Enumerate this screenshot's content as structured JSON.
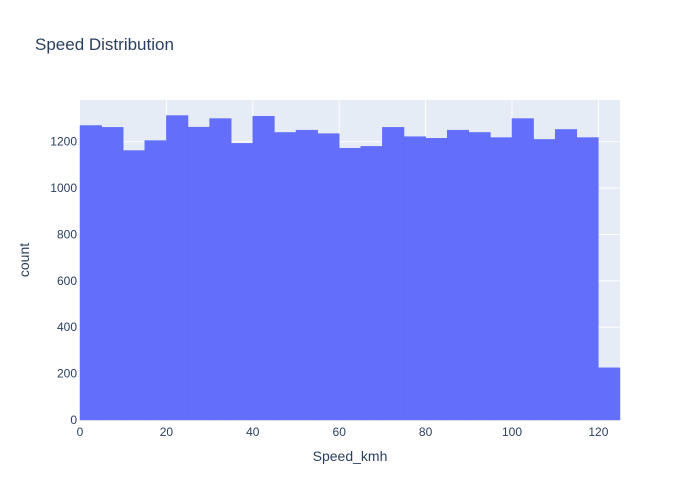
{
  "chart_data": {
    "type": "bar",
    "title": "Speed Distribution",
    "xlabel": "Speed_kmh",
    "ylabel": "count",
    "bin_width": 5,
    "bin_starts": [
      0,
      5,
      10,
      15,
      20,
      25,
      30,
      35,
      40,
      45,
      50,
      55,
      60,
      65,
      70,
      75,
      80,
      85,
      90,
      95,
      100,
      105,
      110,
      115,
      120
    ],
    "values": [
      1270,
      1262,
      1162,
      1205,
      1313,
      1263,
      1300,
      1193,
      1310,
      1240,
      1250,
      1235,
      1172,
      1180,
      1262,
      1222,
      1215,
      1250,
      1240,
      1218,
      1300,
      1210,
      1253,
      1218,
      225
    ],
    "xlim": [
      0,
      125
    ],
    "ylim": [
      0,
      1380
    ],
    "x_ticks": [
      "0",
      "20",
      "40",
      "60",
      "80",
      "100",
      "120"
    ],
    "y_ticks": [
      "0",
      "200",
      "400",
      "600",
      "800",
      "1000",
      "1200"
    ],
    "grid": true,
    "colors": {
      "bar": "#636efa",
      "plot_background": "#e5ecf6",
      "grid": "#ffffff",
      "text": "#2a3f5f"
    }
  }
}
